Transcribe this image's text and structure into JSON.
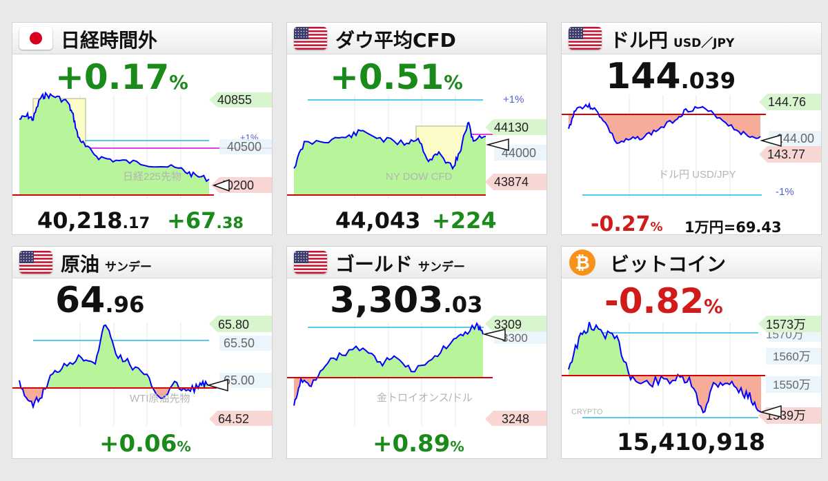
{
  "colors": {
    "up": "#1a8a1a",
    "down": "#d11a1a",
    "fill_up": "#b8f59a",
    "fill_down": "#f7ab99",
    "line": "#0000ff",
    "baseline": "#d40000",
    "pct_line": "#55c8ee",
    "highlight": "#fbfcc8",
    "magenta": "#e040e0",
    "tag_green": "#d8f5d0",
    "tag_red": "#f8d6d4",
    "tag_blue": "#e6f4fb"
  },
  "cards": {
    "nikkei": {
      "title": "日経時間外",
      "change_int": "+0.17",
      "change_unit": "%",
      "chart_caption": "日経225先物",
      "pct_label": "+1%",
      "tags": {
        "high": "40855",
        "mid": "40500",
        "low": "40200"
      },
      "price_int": "40,218",
      "price_dec": ".17",
      "diff_int": "+67",
      "diff_dec": ".38"
    },
    "dow": {
      "title": "ダウ平均CFD",
      "change_int": "+0.51",
      "change_unit": "%",
      "chart_caption": "NY DOW CFD",
      "pct_label": "+1%",
      "tags": {
        "high": "44130",
        "mid": "44000",
        "low": "43874"
      },
      "price": "44,043",
      "diff": "+224"
    },
    "usdjpy": {
      "title": "ドル円",
      "title_sub": "USD／JPY",
      "price_int": "144",
      "price_dec": ".039",
      "chart_caption": "ドル円 USD/JPY",
      "pct_label": "-1%",
      "tags": {
        "high": "144.76",
        "mid": "144.00",
        "low": "143.77"
      },
      "change_int": "-0.27",
      "change_unit": "%",
      "conversion": "1万円=69.43"
    },
    "oil": {
      "title": "原油",
      "title_sub": "サンデー",
      "price_int": "64",
      "price_dec": ".96",
      "chart_caption": "WTI原油先物",
      "tags": {
        "high": "65.80",
        "mid_upper": "65.50",
        "mid": "65.00",
        "low": "64.52"
      },
      "change_int": "+0.06",
      "change_unit": "%"
    },
    "gold": {
      "title": "ゴールド",
      "title_sub": "サンデー",
      "price_int": "3,303",
      "price_dec": ".03",
      "chart_caption": "金トロイオンス/ドル",
      "tags": {
        "high": "3309",
        "mid": "3300",
        "low": "3248"
      },
      "change_int": "+0.89",
      "change_unit": "%"
    },
    "bitcoin": {
      "title": "ビットコイン",
      "change_int": "-0.82",
      "change_unit": "%",
      "chart_caption": "CRYPTO",
      "tags": {
        "high": "1573万",
        "high_under": "1570万",
        "t1560": "1560万",
        "t1550": "1550万",
        "low": "1539万"
      },
      "price": "15,410,918"
    }
  }
}
